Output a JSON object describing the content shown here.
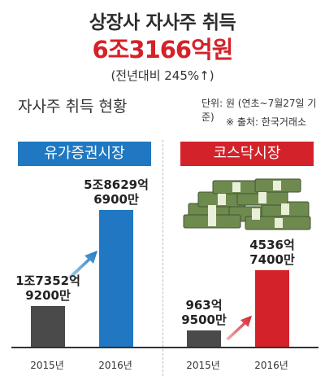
{
  "header": {
    "title": "상장사 자사주 취득",
    "total": "6조3166억원",
    "growth": "(전년대비 245%↑)"
  },
  "subheader": {
    "label": "자사주 취득 현황",
    "unit": "단위: 원 (연초~7월27일 기준)",
    "source": "※ 출처: 한국거래소"
  },
  "colors": {
    "kospi": "#1f78c1",
    "kosdaq": "#d4222a",
    "bar_2015": "#4a4a4a"
  },
  "icons": [
    "money-stack-icon",
    "up-arrow-icon"
  ],
  "chart_data": [
    {
      "type": "bar",
      "market": "유가증권시장",
      "categories": [
        "2015년",
        "2016년"
      ],
      "values": [
        17352.92,
        58629.69
      ],
      "value_labels": [
        [
          "1조7352억",
          "9200만"
        ],
        [
          "5조8629억",
          "6900만"
        ]
      ],
      "unit": "억원"
    },
    {
      "type": "bar",
      "market": "코스닥시장",
      "categories": [
        "2015년",
        "2016년"
      ],
      "values": [
        963.95,
        4536.74
      ],
      "value_labels": [
        [
          "963억",
          "9500만"
        ],
        [
          "4536억",
          "7400만"
        ]
      ],
      "unit": "억원"
    }
  ]
}
